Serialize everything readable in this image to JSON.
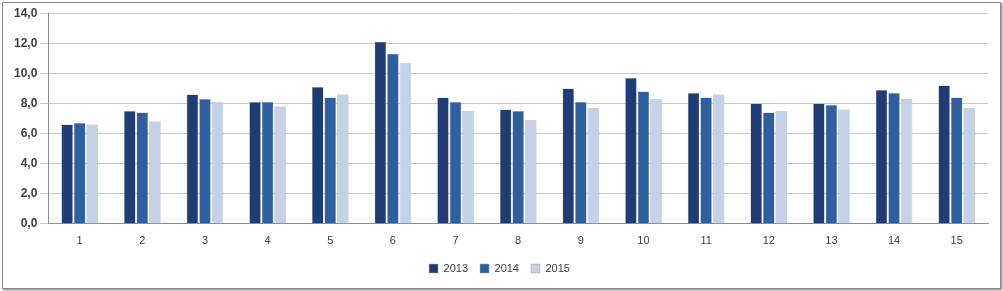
{
  "chart_data": {
    "type": "bar",
    "categories": [
      "1",
      "2",
      "3",
      "4",
      "5",
      "6",
      "7",
      "8",
      "9",
      "10",
      "11",
      "12",
      "13",
      "14",
      "15"
    ],
    "series": [
      {
        "name": "2013",
        "color": "#1f3c74",
        "values": [
          6.6,
          7.5,
          8.6,
          8.1,
          9.1,
          12.1,
          8.4,
          7.6,
          9.0,
          9.7,
          8.7,
          8.0,
          8.0,
          8.9,
          9.2
        ]
      },
      {
        "name": "2014",
        "color": "#2f5f9f",
        "values": [
          6.7,
          7.4,
          8.3,
          8.1,
          8.4,
          11.3,
          8.1,
          7.5,
          8.1,
          8.8,
          8.4,
          7.4,
          7.9,
          8.7,
          8.4
        ]
      },
      {
        "name": "2015",
        "color": "#c5d2e6",
        "values": [
          6.6,
          6.8,
          8.1,
          7.8,
          8.6,
          10.7,
          7.5,
          6.9,
          7.7,
          8.3,
          8.6,
          7.5,
          7.6,
          8.3,
          7.7
        ]
      }
    ],
    "ylim": [
      0,
      14
    ],
    "yticks": [
      {
        "value": 0,
        "label": "0,0"
      },
      {
        "value": 2,
        "label": "2,0"
      },
      {
        "value": 4,
        "label": "4,0"
      },
      {
        "value": 6,
        "label": "6,0"
      },
      {
        "value": 8,
        "label": "8,0"
      },
      {
        "value": 10,
        "label": "10,0"
      },
      {
        "value": 12,
        "label": "12,0"
      },
      {
        "value": 14,
        "label": "14,0"
      }
    ],
    "grid": true,
    "legend": "bottom"
  }
}
